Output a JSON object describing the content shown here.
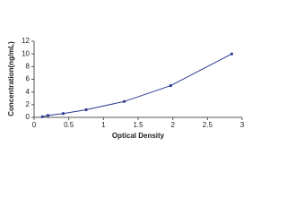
{
  "chart_data": {
    "type": "scatter",
    "x_label": "Optical Density",
    "y_label": "Concentration(ng/mL)",
    "x": [
      0.12,
      0.2,
      0.42,
      0.75,
      1.3,
      1.97,
      2.85
    ],
    "series": [
      {
        "color": "#2a3a8f",
        "values": [
          0.1,
          0.3,
          0.6,
          1.2,
          2.5,
          5,
          10
        ]
      }
    ],
    "xlim": [
      0,
      3
    ],
    "xticks": [
      0,
      0.5,
      1,
      1.5,
      2,
      2.5,
      3
    ],
    "ylim": [
      0,
      12
    ],
    "yticks": [
      0,
      2,
      4,
      6,
      8,
      10,
      12
    ]
  }
}
